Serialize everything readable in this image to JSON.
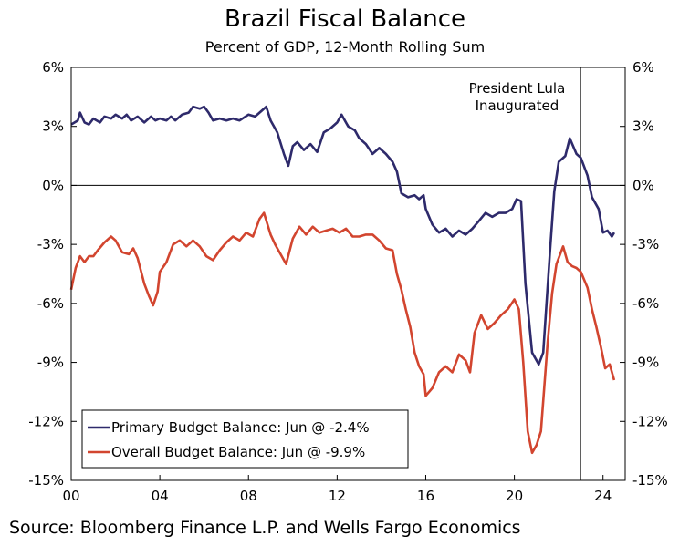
{
  "chart_data": {
    "type": "line",
    "title": "Brazil Fiscal Balance",
    "subtitle": "Percent of GDP, 12-Month Rolling Sum",
    "source": "Source: Bloomberg Finance L.P. and Wells Fargo Economics",
    "xlabel": "",
    "ylabel": "",
    "x_range": [
      2000,
      2025
    ],
    "ylim": [
      -15,
      6
    ],
    "y_ticks": [
      6,
      3,
      0,
      -3,
      -6,
      -9,
      -12,
      -15
    ],
    "y_tick_labels": [
      "6%",
      "3%",
      "0%",
      "-3%",
      "-6%",
      "-9%",
      "-12%",
      "-15%"
    ],
    "x_ticks": [
      2000,
      2004,
      2008,
      2012,
      2016,
      2020,
      2024
    ],
    "x_tick_labels": [
      "00",
      "04",
      "08",
      "12",
      "16",
      "20",
      "24"
    ],
    "reference_line": {
      "x": 2023.0,
      "label_lines": [
        "President Lula",
        "Inaugurated"
      ]
    },
    "zero_line": 0,
    "legend_position": "bottom-left",
    "series": [
      {
        "name": "Primary Budget Balance: Jun @ -2.4%",
        "color": "#2e2a6b",
        "points": [
          [
            2000.0,
            3.1
          ],
          [
            2000.3,
            3.3
          ],
          [
            2000.4,
            3.7
          ],
          [
            2000.6,
            3.2
          ],
          [
            2000.8,
            3.1
          ],
          [
            2001.0,
            3.4
          ],
          [
            2001.3,
            3.2
          ],
          [
            2001.5,
            3.5
          ],
          [
            2001.8,
            3.4
          ],
          [
            2002.0,
            3.6
          ],
          [
            2002.3,
            3.4
          ],
          [
            2002.5,
            3.6
          ],
          [
            2002.7,
            3.3
          ],
          [
            2003.0,
            3.5
          ],
          [
            2003.3,
            3.2
          ],
          [
            2003.6,
            3.5
          ],
          [
            2003.8,
            3.3
          ],
          [
            2004.0,
            3.4
          ],
          [
            2004.3,
            3.3
          ],
          [
            2004.5,
            3.5
          ],
          [
            2004.7,
            3.3
          ],
          [
            2005.0,
            3.6
          ],
          [
            2005.3,
            3.7
          ],
          [
            2005.5,
            4.0
          ],
          [
            2005.8,
            3.9
          ],
          [
            2006.0,
            4.0
          ],
          [
            2006.2,
            3.7
          ],
          [
            2006.4,
            3.3
          ],
          [
            2006.7,
            3.4
          ],
          [
            2007.0,
            3.3
          ],
          [
            2007.3,
            3.4
          ],
          [
            2007.6,
            3.3
          ],
          [
            2008.0,
            3.6
          ],
          [
            2008.3,
            3.5
          ],
          [
            2008.6,
            3.8
          ],
          [
            2008.8,
            4.0
          ],
          [
            2009.0,
            3.3
          ],
          [
            2009.3,
            2.7
          ],
          [
            2009.6,
            1.6
          ],
          [
            2009.8,
            1.0
          ],
          [
            2010.0,
            2.0
          ],
          [
            2010.2,
            2.2
          ],
          [
            2010.5,
            1.8
          ],
          [
            2010.8,
            2.1
          ],
          [
            2011.1,
            1.7
          ],
          [
            2011.4,
            2.7
          ],
          [
            2011.7,
            2.9
          ],
          [
            2012.0,
            3.2
          ],
          [
            2012.2,
            3.6
          ],
          [
            2012.5,
            3.0
          ],
          [
            2012.8,
            2.8
          ],
          [
            2013.0,
            2.4
          ],
          [
            2013.3,
            2.1
          ],
          [
            2013.6,
            1.6
          ],
          [
            2013.9,
            1.9
          ],
          [
            2014.2,
            1.6
          ],
          [
            2014.5,
            1.2
          ],
          [
            2014.7,
            0.7
          ],
          [
            2014.9,
            -0.4
          ],
          [
            2015.2,
            -0.6
          ],
          [
            2015.5,
            -0.5
          ],
          [
            2015.7,
            -0.7
          ],
          [
            2015.9,
            -0.5
          ],
          [
            2016.0,
            -1.2
          ],
          [
            2016.3,
            -2.0
          ],
          [
            2016.6,
            -2.4
          ],
          [
            2016.9,
            -2.2
          ],
          [
            2017.2,
            -2.6
          ],
          [
            2017.5,
            -2.3
          ],
          [
            2017.8,
            -2.5
          ],
          [
            2018.1,
            -2.2
          ],
          [
            2018.4,
            -1.8
          ],
          [
            2018.7,
            -1.4
          ],
          [
            2019.0,
            -1.6
          ],
          [
            2019.3,
            -1.4
          ],
          [
            2019.6,
            -1.4
          ],
          [
            2019.9,
            -1.2
          ],
          [
            2020.1,
            -0.7
          ],
          [
            2020.3,
            -0.8
          ],
          [
            2020.5,
            -5.0
          ],
          [
            2020.8,
            -8.5
          ],
          [
            2021.1,
            -9.1
          ],
          [
            2021.3,
            -8.5
          ],
          [
            2021.6,
            -3.5
          ],
          [
            2021.8,
            -0.3
          ],
          [
            2022.0,
            1.2
          ],
          [
            2022.3,
            1.5
          ],
          [
            2022.5,
            2.4
          ],
          [
            2022.8,
            1.6
          ],
          [
            2023.0,
            1.4
          ],
          [
            2023.3,
            0.5
          ],
          [
            2023.5,
            -0.6
          ],
          [
            2023.8,
            -1.2
          ],
          [
            2024.0,
            -2.4
          ],
          [
            2024.2,
            -2.3
          ],
          [
            2024.4,
            -2.6
          ],
          [
            2024.5,
            -2.4
          ]
        ]
      },
      {
        "name": "Overall Budget Balance: Jun @ -9.9%",
        "color": "#d2452f",
        "points": [
          [
            2000.0,
            -5.3
          ],
          [
            2000.2,
            -4.2
          ],
          [
            2000.4,
            -3.6
          ],
          [
            2000.6,
            -3.9
          ],
          [
            2000.8,
            -3.6
          ],
          [
            2001.0,
            -3.6
          ],
          [
            2001.2,
            -3.3
          ],
          [
            2001.5,
            -2.9
          ],
          [
            2001.8,
            -2.6
          ],
          [
            2002.0,
            -2.8
          ],
          [
            2002.3,
            -3.4
          ],
          [
            2002.6,
            -3.5
          ],
          [
            2002.8,
            -3.2
          ],
          [
            2003.0,
            -3.7
          ],
          [
            2003.3,
            -5.0
          ],
          [
            2003.5,
            -5.6
          ],
          [
            2003.7,
            -6.1
          ],
          [
            2003.9,
            -5.4
          ],
          [
            2004.0,
            -4.4
          ],
          [
            2004.3,
            -3.9
          ],
          [
            2004.6,
            -3.0
          ],
          [
            2004.9,
            -2.8
          ],
          [
            2005.2,
            -3.1
          ],
          [
            2005.5,
            -2.8
          ],
          [
            2005.8,
            -3.1
          ],
          [
            2006.1,
            -3.6
          ],
          [
            2006.4,
            -3.8
          ],
          [
            2006.7,
            -3.3
          ],
          [
            2007.0,
            -2.9
          ],
          [
            2007.3,
            -2.6
          ],
          [
            2007.6,
            -2.8
          ],
          [
            2007.9,
            -2.4
          ],
          [
            2008.2,
            -2.6
          ],
          [
            2008.5,
            -1.7
          ],
          [
            2008.7,
            -1.4
          ],
          [
            2009.0,
            -2.5
          ],
          [
            2009.2,
            -3.0
          ],
          [
            2009.5,
            -3.6
          ],
          [
            2009.7,
            -4.0
          ],
          [
            2010.0,
            -2.7
          ],
          [
            2010.3,
            -2.1
          ],
          [
            2010.6,
            -2.5
          ],
          [
            2010.9,
            -2.1
          ],
          [
            2011.2,
            -2.4
          ],
          [
            2011.5,
            -2.3
          ],
          [
            2011.8,
            -2.2
          ],
          [
            2012.1,
            -2.4
          ],
          [
            2012.4,
            -2.2
          ],
          [
            2012.7,
            -2.6
          ],
          [
            2013.0,
            -2.6
          ],
          [
            2013.3,
            -2.5
          ],
          [
            2013.6,
            -2.5
          ],
          [
            2013.9,
            -2.8
          ],
          [
            2014.2,
            -3.2
          ],
          [
            2014.5,
            -3.3
          ],
          [
            2014.7,
            -4.5
          ],
          [
            2014.9,
            -5.3
          ],
          [
            2015.1,
            -6.3
          ],
          [
            2015.3,
            -7.2
          ],
          [
            2015.5,
            -8.5
          ],
          [
            2015.7,
            -9.2
          ],
          [
            2015.9,
            -9.6
          ],
          [
            2016.0,
            -10.7
          ],
          [
            2016.3,
            -10.3
          ],
          [
            2016.6,
            -9.5
          ],
          [
            2016.9,
            -9.2
          ],
          [
            2017.2,
            -9.5
          ],
          [
            2017.5,
            -8.6
          ],
          [
            2017.8,
            -8.9
          ],
          [
            2018.0,
            -9.5
          ],
          [
            2018.2,
            -7.5
          ],
          [
            2018.5,
            -6.6
          ],
          [
            2018.8,
            -7.3
          ],
          [
            2019.1,
            -7.0
          ],
          [
            2019.4,
            -6.6
          ],
          [
            2019.7,
            -6.3
          ],
          [
            2020.0,
            -5.8
          ],
          [
            2020.2,
            -6.3
          ],
          [
            2020.4,
            -9.0
          ],
          [
            2020.6,
            -12.5
          ],
          [
            2020.8,
            -13.6
          ],
          [
            2021.0,
            -13.2
          ],
          [
            2021.2,
            -12.5
          ],
          [
            2021.5,
            -8.0
          ],
          [
            2021.7,
            -5.5
          ],
          [
            2021.9,
            -4.0
          ],
          [
            2022.2,
            -3.1
          ],
          [
            2022.4,
            -3.9
          ],
          [
            2022.6,
            -4.1
          ],
          [
            2022.8,
            -4.2
          ],
          [
            2023.0,
            -4.4
          ],
          [
            2023.3,
            -5.2
          ],
          [
            2023.5,
            -6.3
          ],
          [
            2023.7,
            -7.2
          ],
          [
            2023.9,
            -8.2
          ],
          [
            2024.1,
            -9.3
          ],
          [
            2024.3,
            -9.1
          ],
          [
            2024.5,
            -9.9
          ]
        ]
      }
    ]
  }
}
